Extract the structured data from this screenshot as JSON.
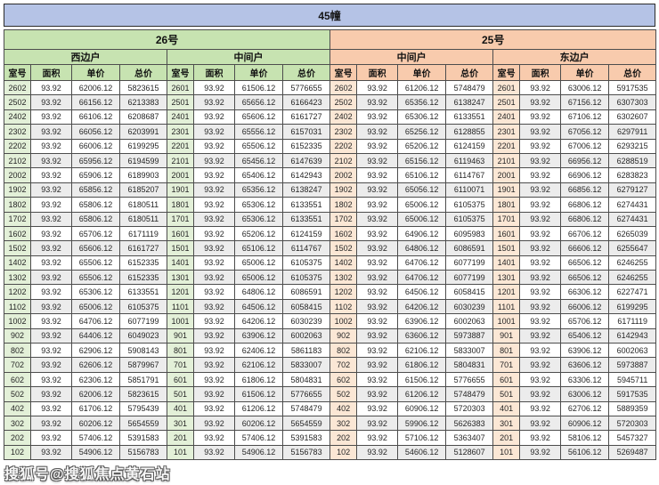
{
  "title": "45幢",
  "watermark": "搜狐号@搜狐焦点黄石站",
  "column_headers": [
    "室号",
    "面积",
    "单价",
    "总价"
  ],
  "colors": {
    "title_bg": "#b5c3e6",
    "green_bg": "#c7e3b1",
    "orange_bg": "#f8cbad",
    "green_room_bg": "#e3f0d8",
    "orange_room_bg": "#fbe7d5",
    "alt_row_bg": "#ececec",
    "border": "#4d4d4d"
  },
  "buildings": [
    {
      "name": "26号",
      "theme": "green",
      "sections": [
        {
          "name": "西边户",
          "rows": [
            [
              "2602",
              "93.92",
              "62006.12",
              "5823615"
            ],
            [
              "2502",
              "93.92",
              "66156.12",
              "6213383"
            ],
            [
              "2402",
              "93.92",
              "66106.12",
              "6208687"
            ],
            [
              "2302",
              "93.92",
              "66056.12",
              "6203991"
            ],
            [
              "2202",
              "93.92",
              "66006.12",
              "6199295"
            ],
            [
              "2102",
              "93.92",
              "65956.12",
              "6194599"
            ],
            [
              "2002",
              "93.92",
              "65906.12",
              "6189903"
            ],
            [
              "1902",
              "93.92",
              "65856.12",
              "6185207"
            ],
            [
              "1802",
              "93.92",
              "65806.12",
              "6180511"
            ],
            [
              "1702",
              "93.92",
              "65806.12",
              "6180511"
            ],
            [
              "1602",
              "93.92",
              "65706.12",
              "6171119"
            ],
            [
              "1502",
              "93.92",
              "65606.12",
              "6161727"
            ],
            [
              "1402",
              "93.92",
              "65506.12",
              "6152335"
            ],
            [
              "1302",
              "93.92",
              "65506.12",
              "6152335"
            ],
            [
              "1202",
              "93.92",
              "65306.12",
              "6133551"
            ],
            [
              "1102",
              "93.92",
              "65006.12",
              "6105375"
            ],
            [
              "1002",
              "93.92",
              "64706.12",
              "6077199"
            ],
            [
              "902",
              "93.92",
              "64406.12",
              "6049023"
            ],
            [
              "802",
              "93.92",
              "62906.12",
              "5908143"
            ],
            [
              "702",
              "93.92",
              "62606.12",
              "5879967"
            ],
            [
              "602",
              "93.92",
              "62306.12",
              "5851791"
            ],
            [
              "502",
              "93.92",
              "62006.12",
              "5823615"
            ],
            [
              "402",
              "93.92",
              "61706.12",
              "5795439"
            ],
            [
              "302",
              "93.92",
              "60206.12",
              "5654559"
            ],
            [
              "202",
              "93.92",
              "57406.12",
              "5391583"
            ],
            [
              "102",
              "93.92",
              "54906.12",
              "5156783"
            ]
          ]
        },
        {
          "name": "中间户",
          "rows": [
            [
              "2601",
              "93.92",
              "61506.12",
              "5776655"
            ],
            [
              "2501",
              "93.92",
              "65656.12",
              "6166423"
            ],
            [
              "2401",
              "93.92",
              "65606.12",
              "6161727"
            ],
            [
              "2301",
              "93.92",
              "65556.12",
              "6157031"
            ],
            [
              "2201",
              "93.92",
              "65506.12",
              "6152335"
            ],
            [
              "2101",
              "93.92",
              "65456.12",
              "6147639"
            ],
            [
              "2001",
              "93.92",
              "65406.12",
              "6142943"
            ],
            [
              "1901",
              "93.92",
              "65356.12",
              "6138247"
            ],
            [
              "1801",
              "93.92",
              "65306.12",
              "6133551"
            ],
            [
              "1701",
              "93.92",
              "65306.12",
              "6133551"
            ],
            [
              "1601",
              "93.92",
              "65206.12",
              "6124159"
            ],
            [
              "1501",
              "93.92",
              "65106.12",
              "6114767"
            ],
            [
              "1401",
              "93.92",
              "65006.12",
              "6105375"
            ],
            [
              "1301",
              "93.92",
              "65006.12",
              "6105375"
            ],
            [
              "1201",
              "93.92",
              "64806.12",
              "6086591"
            ],
            [
              "1101",
              "93.92",
              "64506.12",
              "6058415"
            ],
            [
              "1001",
              "93.92",
              "64206.12",
              "6030239"
            ],
            [
              "901",
              "93.92",
              "63906.12",
              "6002063"
            ],
            [
              "801",
              "93.92",
              "62406.12",
              "5861183"
            ],
            [
              "701",
              "93.92",
              "62106.12",
              "5833007"
            ],
            [
              "601",
              "93.92",
              "61806.12",
              "5804831"
            ],
            [
              "501",
              "93.92",
              "61506.12",
              "5776655"
            ],
            [
              "401",
              "93.92",
              "61206.12",
              "5748479"
            ],
            [
              "301",
              "93.92",
              "60206.12",
              "5654559"
            ],
            [
              "201",
              "93.92",
              "57406.12",
              "5391583"
            ],
            [
              "101",
              "93.92",
              "54906.12",
              "5156783"
            ]
          ]
        }
      ]
    },
    {
      "name": "25号",
      "theme": "orange",
      "sections": [
        {
          "name": "中间户",
          "rows": [
            [
              "2602",
              "93.92",
              "61206.12",
              "5748479"
            ],
            [
              "2502",
              "93.92",
              "65356.12",
              "6138247"
            ],
            [
              "2402",
              "93.92",
              "65306.12",
              "6133551"
            ],
            [
              "2302",
              "93.92",
              "65256.12",
              "6128855"
            ],
            [
              "2202",
              "93.92",
              "65206.12",
              "6124159"
            ],
            [
              "2102",
              "93.92",
              "65156.12",
              "6119463"
            ],
            [
              "2002",
              "93.92",
              "65106.12",
              "6114767"
            ],
            [
              "1902",
              "93.92",
              "65056.12",
              "6110071"
            ],
            [
              "1802",
              "93.92",
              "65006.12",
              "6105375"
            ],
            [
              "1702",
              "93.92",
              "65006.12",
              "6105375"
            ],
            [
              "1602",
              "93.92",
              "64906.12",
              "6095983"
            ],
            [
              "1502",
              "93.92",
              "64806.12",
              "6086591"
            ],
            [
              "1402",
              "93.92",
              "64706.12",
              "6077199"
            ],
            [
              "1302",
              "93.92",
              "64706.12",
              "6077199"
            ],
            [
              "1202",
              "93.92",
              "64506.12",
              "6058415"
            ],
            [
              "1102",
              "93.92",
              "64206.12",
              "6030239"
            ],
            [
              "1002",
              "93.92",
              "63906.12",
              "6002063"
            ],
            [
              "902",
              "93.92",
              "63606.12",
              "5973887"
            ],
            [
              "802",
              "93.92",
              "62106.12",
              "5833007"
            ],
            [
              "702",
              "93.92",
              "61806.12",
              "5804831"
            ],
            [
              "602",
              "93.92",
              "61506.12",
              "5776655"
            ],
            [
              "502",
              "93.92",
              "61206.12",
              "5748479"
            ],
            [
              "402",
              "93.92",
              "60906.12",
              "5720303"
            ],
            [
              "302",
              "93.92",
              "59906.12",
              "5626383"
            ],
            [
              "202",
              "93.92",
              "57106.12",
              "5363407"
            ],
            [
              "102",
              "93.92",
              "54606.12",
              "5128607"
            ]
          ]
        },
        {
          "name": "东边户",
          "rows": [
            [
              "2601",
              "93.92",
              "63006.12",
              "5917535"
            ],
            [
              "2501",
              "93.92",
              "67156.12",
              "6307303"
            ],
            [
              "2401",
              "93.92",
              "67106.12",
              "6302607"
            ],
            [
              "2301",
              "93.92",
              "67056.12",
              "6297911"
            ],
            [
              "2201",
              "93.92",
              "67006.12",
              "6293215"
            ],
            [
              "2101",
              "93.92",
              "66956.12",
              "6288519"
            ],
            [
              "2001",
              "93.92",
              "66906.12",
              "6283823"
            ],
            [
              "1901",
              "93.92",
              "66856.12",
              "6279127"
            ],
            [
              "1801",
              "93.92",
              "66806.12",
              "6274431"
            ],
            [
              "1701",
              "93.92",
              "66806.12",
              "6274431"
            ],
            [
              "1601",
              "93.92",
              "66706.12",
              "6265039"
            ],
            [
              "1501",
              "93.92",
              "66606.12",
              "6255647"
            ],
            [
              "1401",
              "93.92",
              "66506.12",
              "6246255"
            ],
            [
              "1301",
              "93.92",
              "66506.12",
              "6246255"
            ],
            [
              "1201",
              "93.92",
              "66306.12",
              "6227471"
            ],
            [
              "1101",
              "93.92",
              "66006.12",
              "6199295"
            ],
            [
              "1001",
              "93.92",
              "65706.12",
              "6171119"
            ],
            [
              "901",
              "93.92",
              "65406.12",
              "6142943"
            ],
            [
              "801",
              "93.92",
              "63906.12",
              "6002063"
            ],
            [
              "701",
              "93.92",
              "63606.12",
              "5973887"
            ],
            [
              "601",
              "93.92",
              "63306.12",
              "5945711"
            ],
            [
              "501",
              "93.92",
              "63006.12",
              "5917535"
            ],
            [
              "401",
              "93.92",
              "62706.12",
              "5889359"
            ],
            [
              "301",
              "93.92",
              "60906.12",
              "5720303"
            ],
            [
              "201",
              "93.92",
              "58106.12",
              "5457327"
            ],
            [
              "101",
              "93.92",
              "56106.12",
              "5269487"
            ]
          ]
        }
      ]
    }
  ]
}
